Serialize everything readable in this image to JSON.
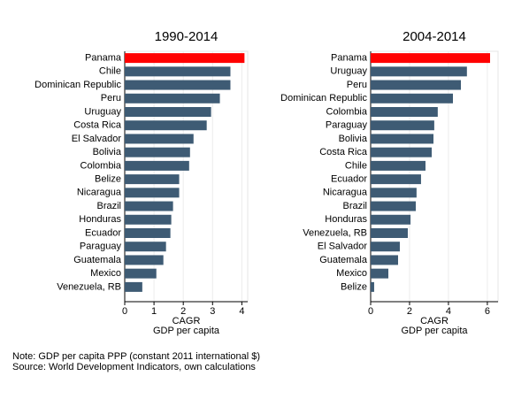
{
  "chart_data": [
    {
      "type": "bar",
      "orientation": "horizontal",
      "title": "1990-2014",
      "categories": [
        "Panama",
        "Chile",
        "Dominican Republic",
        "Peru",
        "Uruguay",
        "Costa Rica",
        "El Salvador",
        "Bolivia",
        "Colombia",
        "Belize",
        "Nicaragua",
        "Brazil",
        "Honduras",
        "Ecuador",
        "Paraguay",
        "Guatemala",
        "Mexico",
        "Venezuela, RB"
      ],
      "values": [
        4.09,
        3.61,
        3.61,
        3.25,
        2.95,
        2.8,
        2.35,
        2.23,
        2.2,
        1.86,
        1.86,
        1.65,
        1.59,
        1.56,
        1.41,
        1.32,
        1.08,
        0.6
      ],
      "colors": [
        "#ff0000",
        "#3e5b74",
        "#3e5b74",
        "#3e5b74",
        "#3e5b74",
        "#3e5b74",
        "#3e5b74",
        "#3e5b74",
        "#3e5b74",
        "#3e5b74",
        "#3e5b74",
        "#3e5b74",
        "#3e5b74",
        "#3e5b74",
        "#3e5b74",
        "#3e5b74",
        "#3e5b74",
        "#3e5b74"
      ],
      "xlim": [
        0,
        4.2
      ],
      "xticks": [
        0,
        1,
        2,
        3,
        4
      ],
      "xlabel": "CAGR",
      "xlabel2": "GDP per capita",
      "grid": true
    },
    {
      "type": "bar",
      "orientation": "horizontal",
      "title": "2004-2014",
      "categories": [
        "Panama",
        "Uruguay",
        "Peru",
        "Dominican Republic",
        "Colombia",
        "Paraguay",
        "Bolivia",
        "Costa Rica",
        "Chile",
        "Ecuador",
        "Nicaragua",
        "Brazil",
        "Honduras",
        "Venezuela, RB",
        "El Salvador",
        "Guatemala",
        "Mexico",
        "Belize"
      ],
      "values": [
        6.14,
        4.95,
        4.64,
        4.23,
        3.45,
        3.27,
        3.23,
        3.14,
        2.82,
        2.59,
        2.36,
        2.32,
        2.05,
        1.91,
        1.5,
        1.41,
        0.91,
        0.18
      ],
      "colors": [
        "#ff0000",
        "#3e5b74",
        "#3e5b74",
        "#3e5b74",
        "#3e5b74",
        "#3e5b74",
        "#3e5b74",
        "#3e5b74",
        "#3e5b74",
        "#3e5b74",
        "#3e5b74",
        "#3e5b74",
        "#3e5b74",
        "#3e5b74",
        "#3e5b74",
        "#3e5b74",
        "#3e5b74",
        "#3e5b74"
      ],
      "xlim": [
        0,
        6.55
      ],
      "xticks": [
        0,
        2,
        4,
        6
      ],
      "xlabel": "CAGR",
      "xlabel2": "GDP per capita",
      "grid": true
    }
  ],
  "note": "Note: GDP per capita PPP (constant 2011 international $)",
  "source": "Source: World Development Indicators, own calculations"
}
